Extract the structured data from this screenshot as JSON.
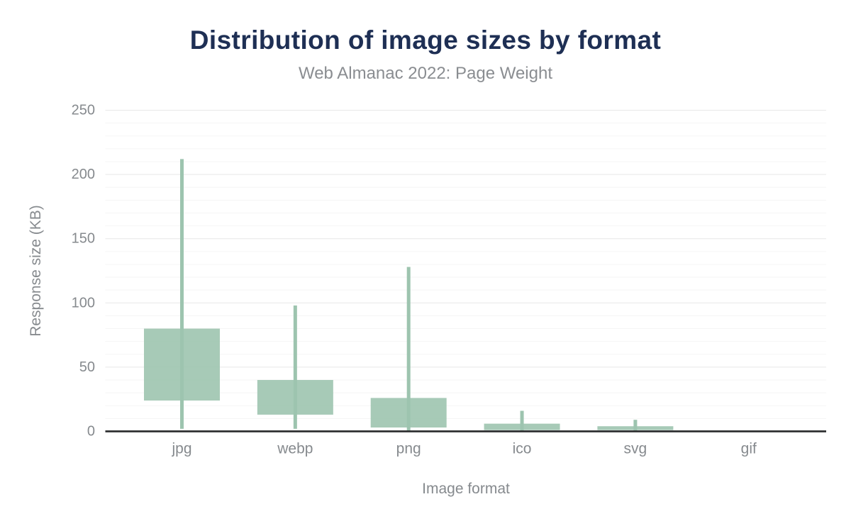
{
  "chart_data": {
    "type": "boxplot",
    "title": "Distribution of image sizes by format",
    "subtitle": "Web Almanac 2022: Page Weight",
    "xlabel": "Image format",
    "ylabel": "Response size (KB)",
    "categories": [
      "jpg",
      "webp",
      "png",
      "ico",
      "svg",
      "gif"
    ],
    "series": [
      {
        "name": "Response size (KB)",
        "values": [
          {
            "category": "jpg",
            "whisker_low": 2,
            "q1": 24,
            "q3": 80,
            "whisker_high": 212
          },
          {
            "category": "webp",
            "whisker_low": 2,
            "q1": 13,
            "q3": 40,
            "whisker_high": 98
          },
          {
            "category": "png",
            "whisker_low": 0,
            "q1": 3,
            "q3": 26,
            "whisker_high": 128
          },
          {
            "category": "ico",
            "whisker_low": 0,
            "q1": 1,
            "q3": 6,
            "whisker_high": 16
          },
          {
            "category": "svg",
            "whisker_low": 0,
            "q1": 1,
            "q3": 4,
            "whisker_high": 9
          },
          {
            "category": "gif",
            "whisker_low": 0,
            "q1": 0,
            "q3": 0,
            "whisker_high": 0
          }
        ]
      }
    ],
    "y_ticks": [
      0,
      50,
      100,
      150,
      200,
      250
    ],
    "ylim": [
      0,
      250
    ],
    "grid": {
      "major_every": 50,
      "minor_every": 10,
      "grid_on": true
    },
    "legend_position": "none",
    "colors": {
      "series_green": "#9dc4af",
      "box_fill_opacity": 0.9,
      "title_navy": "#1e2f54",
      "subtitle_gray": "#8a8d91",
      "label_gray": "#868a8e",
      "grid_major": "#e7e7e7",
      "grid_minor": "#f5f5f5",
      "axis_line": "#2e2f31",
      "background": "#ffffff"
    }
  }
}
